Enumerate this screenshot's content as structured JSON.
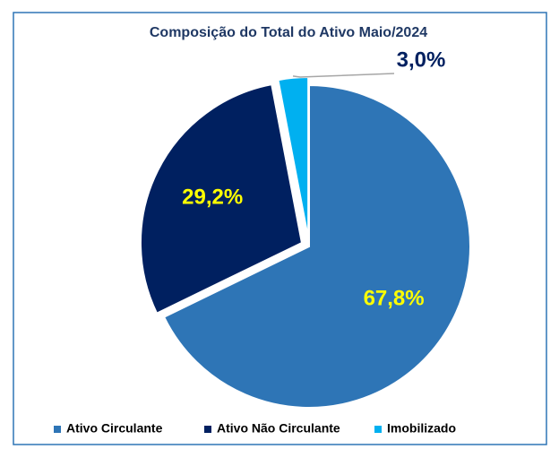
{
  "chart_data": {
    "type": "pie",
    "title": "Composição do Total do Ativo Maio/2024",
    "categories": [
      "Ativo Circulante",
      "Ativo Não Circulante",
      "Imobilizado"
    ],
    "values": [
      67.8,
      29.2,
      3.0
    ],
    "value_labels": [
      "67,8%",
      "29,2%",
      "3,0%"
    ],
    "colors": [
      "#2e75b6",
      "#002060",
      "#00b0f0"
    ],
    "label_colors": [
      "#ffff00",
      "#ffff00",
      "#002060"
    ],
    "legend": "bottom"
  }
}
